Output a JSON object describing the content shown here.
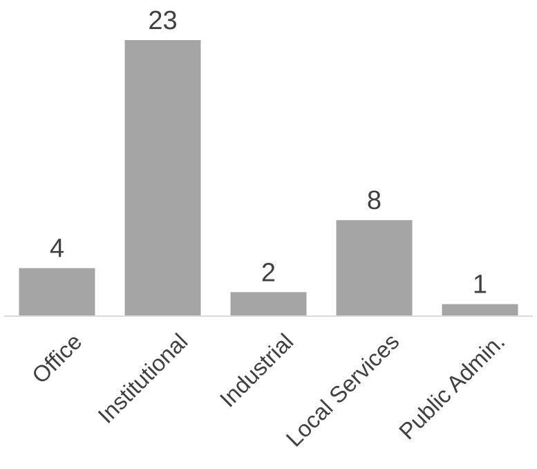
{
  "chart_data": {
    "type": "bar",
    "title": "",
    "xlabel": "",
    "ylabel": "",
    "categories": [
      "Office",
      "Institutional",
      "Industrial",
      "Local Services",
      "Public Admin."
    ],
    "values": [
      4,
      23,
      2,
      8,
      1
    ],
    "ylim": [
      0,
      23
    ],
    "grid": false,
    "legend": "none",
    "data_labels": [
      "4",
      "23",
      "2",
      "8",
      "1"
    ],
    "bar_color": "#a5a5a5",
    "axis_color": "#d9d9d9",
    "text_color": "#404040"
  }
}
